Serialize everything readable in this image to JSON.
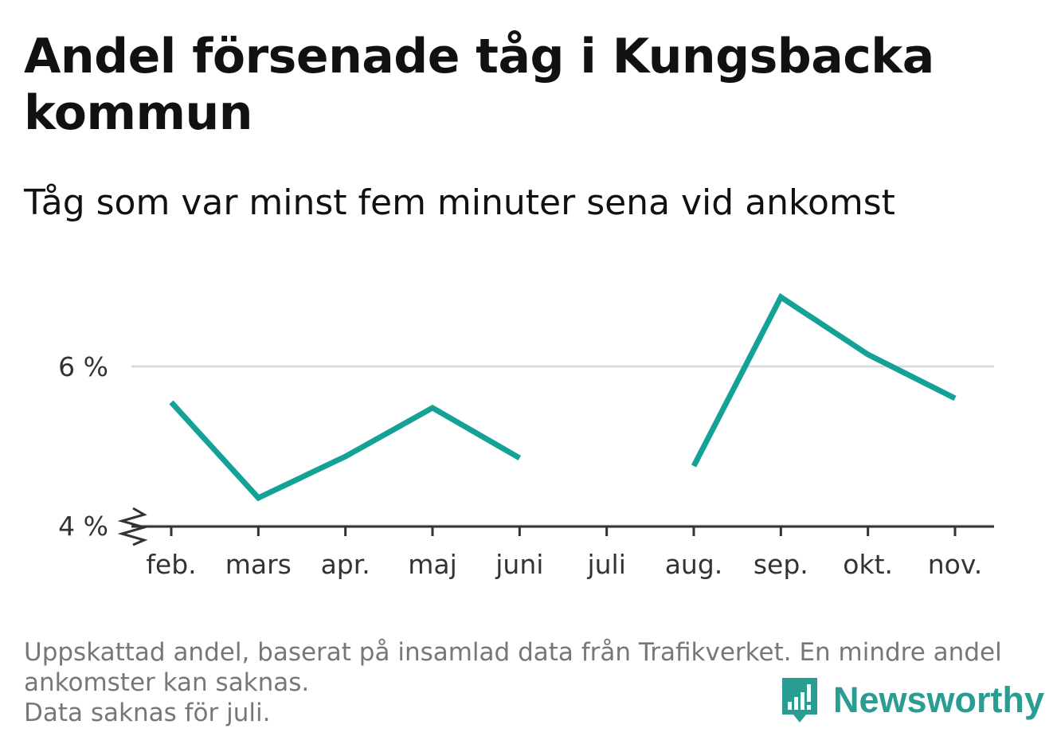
{
  "title": "Andel försenade tåg i Kungsbacka kommun",
  "subtitle": "Tåg som var minst fem minuter sena vid ankomst",
  "notes": [
    "Uppskattad andel, baserat på insamlad data från Trafikverket. En mindre andel",
    "ankomster kan saknas.",
    "Data saknas för juli."
  ],
  "brand": "Newsworthy",
  "colors": {
    "line": "#14a196",
    "grid": "#dddddd",
    "axis": "#333333",
    "brand": "#2a9d93"
  },
  "chart_data": {
    "type": "line",
    "categories": [
      "feb.",
      "mars",
      "apr.",
      "maj",
      "juni",
      "juli",
      "aug.",
      "sep.",
      "okt.",
      "nov."
    ],
    "series": [
      {
        "values": [
          5.55,
          4.35,
          4.87,
          5.48,
          4.85,
          null,
          4.75,
          6.87,
          6.15,
          5.6
        ]
      }
    ],
    "yticks": [
      4,
      6
    ],
    "ytick_labels": [
      "4 %",
      "6 %"
    ],
    "ylim": [
      3.7,
      7.2
    ],
    "y_axis_break": true,
    "grid": true,
    "legend": "none"
  }
}
